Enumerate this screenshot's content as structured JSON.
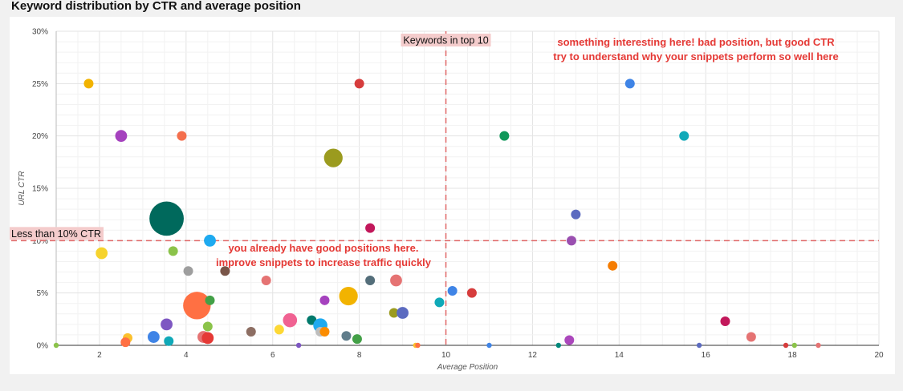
{
  "page": {
    "title": "Keyword distribution by CTR and average position"
  },
  "chart_data": {
    "type": "scatter",
    "subtype": "bubble",
    "title": "Keyword distribution by CTR and average position",
    "xlabel": "Average Position",
    "ylabel": "URL CTR",
    "xlim": [
      1,
      20
    ],
    "ylim": [
      0,
      30
    ],
    "x_ticks": [
      2,
      4,
      6,
      8,
      10,
      12,
      14,
      16,
      18,
      20
    ],
    "y_ticks": [
      0,
      5,
      10,
      15,
      20,
      25,
      30
    ],
    "y_unit": "%",
    "grid": true,
    "reference_lines": {
      "vertical": {
        "x": 10,
        "label": "Keywords in top 10",
        "color": "#e06666"
      },
      "horizontal": {
        "y": 10,
        "label": "Less than 10% CTR",
        "color": "#e06666"
      }
    },
    "annotations": [
      {
        "region": "top-right",
        "lines": [
          "something interesting here! bad position, but good CTR",
          "try to understand why your snippets perform so well here"
        ],
        "color": "#e53935"
      },
      {
        "region": "bottom-left",
        "lines": [
          "you already have good positions here.",
          "improve snippets to increase traffic quickly"
        ],
        "color": "#e53935"
      }
    ],
    "points": [
      {
        "x": 1.75,
        "y": 25,
        "size": 3,
        "color": "#f2b300"
      },
      {
        "x": 2.5,
        "y": 20,
        "size": 4,
        "color": "#a542be"
      },
      {
        "x": 3.9,
        "y": 20,
        "size": 3,
        "color": "#f46f4d"
      },
      {
        "x": 8.0,
        "y": 25,
        "size": 3,
        "color": "#d63c3c"
      },
      {
        "x": 7.4,
        "y": 17.9,
        "size": 7,
        "color": "#9b9b1f"
      },
      {
        "x": 11.35,
        "y": 20,
        "size": 3,
        "color": "#10985a"
      },
      {
        "x": 14.25,
        "y": 25,
        "size": 3,
        "color": "#3f84e6"
      },
      {
        "x": 15.5,
        "y": 20,
        "size": 3,
        "color": "#10a9b8"
      },
      {
        "x": 13.0,
        "y": 12.5,
        "size": 3,
        "color": "#5c6bc0"
      },
      {
        "x": 12.9,
        "y": 10,
        "size": 3,
        "color": "#9a4fb0"
      },
      {
        "x": 3.55,
        "y": 12.1,
        "size": 14,
        "color": "#00695c"
      },
      {
        "x": 4.55,
        "y": 10,
        "size": 4,
        "color": "#1eaaf0"
      },
      {
        "x": 8.25,
        "y": 11.2,
        "size": 3,
        "color": "#c2185b"
      },
      {
        "x": 2.05,
        "y": 8.8,
        "size": 4,
        "color": "#f6d32d"
      },
      {
        "x": 3.7,
        "y": 9.0,
        "size": 3,
        "color": "#8bc34a"
      },
      {
        "x": 4.05,
        "y": 7.1,
        "size": 3,
        "color": "#9e9e9e"
      },
      {
        "x": 4.9,
        "y": 7.1,
        "size": 3,
        "color": "#795548"
      },
      {
        "x": 5.85,
        "y": 6.2,
        "size": 3,
        "color": "#e57373"
      },
      {
        "x": 8.25,
        "y": 6.2,
        "size": 3,
        "color": "#546e7a"
      },
      {
        "x": 8.85,
        "y": 6.2,
        "size": 4,
        "color": "#e57373"
      },
      {
        "x": 4.25,
        "y": 3.8,
        "size": 11,
        "color": "#ff7043"
      },
      {
        "x": 4.55,
        "y": 4.3,
        "size": 3,
        "color": "#43a047"
      },
      {
        "x": 7.75,
        "y": 4.7,
        "size": 7,
        "color": "#f2b300"
      },
      {
        "x": 7.2,
        "y": 4.3,
        "size": 3,
        "color": "#a542be"
      },
      {
        "x": 8.8,
        "y": 3.1,
        "size": 3,
        "color": "#9b9b1f"
      },
      {
        "x": 9.0,
        "y": 3.1,
        "size": 4,
        "color": "#5c6bc0"
      },
      {
        "x": 9.85,
        "y": 4.1,
        "size": 3,
        "color": "#10a9b8"
      },
      {
        "x": 10.15,
        "y": 5.2,
        "size": 3,
        "color": "#3f84e6"
      },
      {
        "x": 10.6,
        "y": 5.0,
        "size": 3,
        "color": "#d63c3c"
      },
      {
        "x": 13.85,
        "y": 7.6,
        "size": 3,
        "color": "#f57c00"
      },
      {
        "x": 6.4,
        "y": 2.4,
        "size": 5,
        "color": "#f06292"
      },
      {
        "x": 6.9,
        "y": 2.4,
        "size": 3,
        "color": "#00796b"
      },
      {
        "x": 7.1,
        "y": 1.9,
        "size": 5,
        "color": "#1eaaf0"
      },
      {
        "x": 7.1,
        "y": 1.3,
        "size": 3,
        "color": "#bdbdbd"
      },
      {
        "x": 7.2,
        "y": 1.3,
        "size": 3,
        "color": "#fb8c00"
      },
      {
        "x": 7.7,
        "y": 0.9,
        "size": 3,
        "color": "#607d8b"
      },
      {
        "x": 7.95,
        "y": 0.6,
        "size": 3,
        "color": "#43a047"
      },
      {
        "x": 6.15,
        "y": 1.5,
        "size": 3,
        "color": "#fdd835"
      },
      {
        "x": 5.5,
        "y": 1.3,
        "size": 3,
        "color": "#8d6e63"
      },
      {
        "x": 3.55,
        "y": 2.0,
        "size": 4,
        "color": "#7e57c2"
      },
      {
        "x": 3.25,
        "y": 0.8,
        "size": 4,
        "color": "#3f84e6"
      },
      {
        "x": 3.6,
        "y": 0.4,
        "size": 3,
        "color": "#10a9b8"
      },
      {
        "x": 4.5,
        "y": 1.8,
        "size": 3,
        "color": "#8bc34a"
      },
      {
        "x": 4.4,
        "y": 0.8,
        "size": 4,
        "color": "#e57373"
      },
      {
        "x": 4.5,
        "y": 0.7,
        "size": 4,
        "color": "#e53935"
      },
      {
        "x": 2.65,
        "y": 0.7,
        "size": 3,
        "color": "#fbc02d"
      },
      {
        "x": 2.6,
        "y": 0.3,
        "size": 3,
        "color": "#ff7043"
      },
      {
        "x": 12.85,
        "y": 0.5,
        "size": 3,
        "color": "#ab47bc"
      },
      {
        "x": 16.45,
        "y": 2.3,
        "size": 3,
        "color": "#c2185b"
      },
      {
        "x": 17.05,
        "y": 0.8,
        "size": 3,
        "color": "#e57373"
      },
      {
        "x": 1.0,
        "y": 0,
        "size": 1,
        "color": "#8bc34a"
      },
      {
        "x": 6.6,
        "y": 0,
        "size": 1,
        "color": "#7e57c2"
      },
      {
        "x": 9.3,
        "y": 0,
        "size": 1,
        "color": "#fbc02d"
      },
      {
        "x": 9.35,
        "y": 0,
        "size": 1,
        "color": "#ff7043"
      },
      {
        "x": 11.0,
        "y": 0,
        "size": 1,
        "color": "#3f84e6"
      },
      {
        "x": 12.6,
        "y": 0,
        "size": 1,
        "color": "#00897b"
      },
      {
        "x": 15.85,
        "y": 0,
        "size": 1,
        "color": "#5c6bc0"
      },
      {
        "x": 17.85,
        "y": 0,
        "size": 1,
        "color": "#d63c3c"
      },
      {
        "x": 18.05,
        "y": 0,
        "size": 1,
        "color": "#8bc34a"
      },
      {
        "x": 18.6,
        "y": 0,
        "size": 1,
        "color": "#e57373"
      }
    ]
  }
}
